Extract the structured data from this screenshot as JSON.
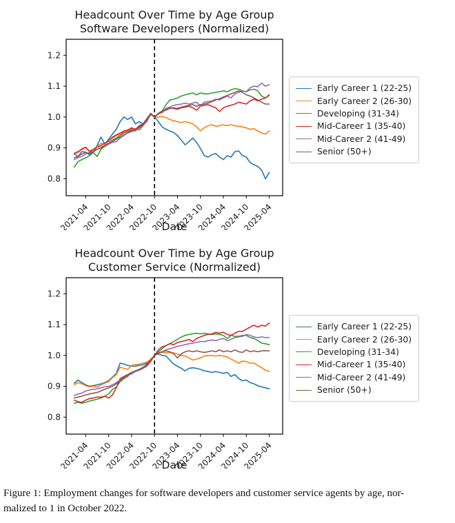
{
  "figure": {
    "caption_line1": "Figure 1: Employment changes for software developers and customer service agents by age, nor-",
    "caption_line2": "malized to 1 in October 2022."
  },
  "chart_data": [
    {
      "type": "line",
      "title_line1": "Headcount Over Time by Age Group",
      "title_line2": "Software Developers (Normalized)",
      "xlabel": "Date",
      "ylabel": "",
      "grid": false,
      "legend_position": "center-left-outside",
      "ylim": [
        0.745,
        1.252
      ],
      "xlim_index": [
        -2.1,
        54.5
      ],
      "ytick_values": [
        0.8,
        0.9,
        1.0,
        1.1,
        1.2
      ],
      "ytick_labels": [
        "0.8",
        "0.9",
        "1.0",
        "1.1",
        "1.2"
      ],
      "xtick_indices": [
        3,
        9,
        15,
        21,
        27,
        33,
        39,
        45,
        51
      ],
      "xtick_labels": [
        "2021-04",
        "2021-10",
        "2022-04",
        "2022-10",
        "2023-04",
        "2023-10",
        "2024-04",
        "2024-10",
        "2025-04"
      ],
      "dashed_at": "2022-10",
      "dashed_index": 21,
      "x": [
        "2021-01",
        "2021-02",
        "2021-03",
        "2021-04",
        "2021-05",
        "2021-06",
        "2021-07",
        "2021-08",
        "2021-09",
        "2021-10",
        "2021-11",
        "2021-12",
        "2022-01",
        "2022-02",
        "2022-03",
        "2022-04",
        "2022-05",
        "2022-06",
        "2022-07",
        "2022-08",
        "2022-09",
        "2022-10",
        "2022-11",
        "2022-12",
        "2023-01",
        "2023-02",
        "2023-03",
        "2023-04",
        "2023-05",
        "2023-06",
        "2023-07",
        "2023-08",
        "2023-09",
        "2023-10",
        "2023-11",
        "2023-12",
        "2024-01",
        "2024-02",
        "2024-03",
        "2024-04",
        "2024-05",
        "2024-06",
        "2024-07",
        "2024-08",
        "2024-09",
        "2024-10",
        "2024-11",
        "2024-12",
        "2025-01",
        "2025-02",
        "2025-03",
        "2025-04"
      ],
      "series": [
        {
          "name": "Early Career 1 (22-25)",
          "color": "#1f77b4",
          "values": [
            0.88,
            0.872,
            0.888,
            0.886,
            0.878,
            0.885,
            0.908,
            0.935,
            0.912,
            0.928,
            0.945,
            0.96,
            0.985,
            1.0,
            0.992,
            1.0,
            0.978,
            0.985,
            0.978,
            0.995,
            1.012,
            1.0,
            0.985,
            0.968,
            0.96,
            0.955,
            0.95,
            0.94,
            0.925,
            0.91,
            0.92,
            0.932,
            0.918,
            0.898,
            0.875,
            0.87,
            0.878,
            0.882,
            0.87,
            0.862,
            0.875,
            0.87,
            0.888,
            0.89,
            0.875,
            0.87,
            0.852,
            0.845,
            0.84,
            0.828,
            0.8,
            0.82
          ]
        },
        {
          "name": "Early Career 2 (26-30)",
          "color": "#ff7f0e",
          "values": [
            0.882,
            0.885,
            0.898,
            0.902,
            0.89,
            0.895,
            0.905,
            0.915,
            0.912,
            0.922,
            0.932,
            0.94,
            0.945,
            0.952,
            0.955,
            0.962,
            0.955,
            0.968,
            0.975,
            0.985,
            1.01,
            1.0,
            1.0,
            1.002,
            0.998,
            0.992,
            0.988,
            0.985,
            0.982,
            0.985,
            0.982,
            0.978,
            0.968,
            0.955,
            0.965,
            0.972,
            0.975,
            0.97,
            0.972,
            0.975,
            0.972,
            0.975,
            0.972,
            0.97,
            0.968,
            0.965,
            0.96,
            0.962,
            0.955,
            0.948,
            0.945,
            0.955
          ]
        },
        {
          "name": "Developing (31-34)",
          "color": "#2ca02c",
          "values": [
            0.838,
            0.855,
            0.862,
            0.868,
            0.875,
            0.885,
            0.872,
            0.895,
            0.905,
            0.912,
            0.92,
            0.928,
            0.935,
            0.942,
            0.948,
            0.955,
            0.962,
            0.958,
            0.972,
            0.99,
            1.008,
            1.0,
            1.012,
            1.02,
            1.04,
            1.055,
            1.058,
            1.062,
            1.068,
            1.072,
            1.075,
            1.078,
            1.072,
            1.078,
            1.075,
            1.075,
            1.078,
            1.08,
            1.082,
            1.085,
            1.082,
            1.088,
            1.092,
            1.09,
            1.085,
            1.082,
            1.088,
            1.09,
            1.085,
            1.068,
            1.062,
            1.07
          ]
        },
        {
          "name": "Mid-Career 1 (35-40)",
          "color": "#d62728",
          "values": [
            0.882,
            0.888,
            0.895,
            0.902,
            0.888,
            0.895,
            0.902,
            0.908,
            0.915,
            0.922,
            0.935,
            0.942,
            0.948,
            0.955,
            0.958,
            0.965,
            0.96,
            0.972,
            0.978,
            0.992,
            1.012,
            1.0,
            1.01,
            1.015,
            1.025,
            1.03,
            1.028,
            1.025,
            1.03,
            1.032,
            1.035,
            1.03,
            1.022,
            1.035,
            1.038,
            1.04,
            1.035,
            1.03,
            1.018,
            1.03,
            1.035,
            1.038,
            1.042,
            1.048,
            1.045,
            1.042,
            1.052,
            1.058,
            1.052,
            1.058,
            1.062,
            1.072
          ]
        },
        {
          "name": "Mid-Career 2 (41-49)",
          "color": "#9467bd",
          "values": [
            0.862,
            0.868,
            0.872,
            0.88,
            0.885,
            0.89,
            0.895,
            0.902,
            0.908,
            0.912,
            0.918,
            0.92,
            0.932,
            0.94,
            0.948,
            0.952,
            0.958,
            0.965,
            0.972,
            0.988,
            1.008,
            1.0,
            1.012,
            1.018,
            1.028,
            1.032,
            1.038,
            1.04,
            1.042,
            1.045,
            1.042,
            1.045,
            1.048,
            1.035,
            1.048,
            1.05,
            1.052,
            1.058,
            1.055,
            1.062,
            1.068,
            1.062,
            1.075,
            1.08,
            1.085,
            1.082,
            1.095,
            1.1,
            1.098,
            1.11,
            1.1,
            1.105
          ]
        },
        {
          "name": "Senior (50+)",
          "color": "#8c564b",
          "values": [
            0.868,
            0.872,
            0.88,
            0.885,
            0.882,
            0.888,
            0.895,
            0.9,
            0.908,
            0.915,
            0.925,
            0.932,
            0.94,
            0.948,
            0.952,
            0.958,
            0.955,
            0.968,
            0.975,
            0.99,
            1.01,
            1.0,
            1.012,
            1.018,
            1.022,
            1.028,
            1.03,
            1.028,
            1.032,
            1.035,
            1.038,
            1.04,
            1.035,
            1.04,
            1.042,
            1.045,
            1.05,
            1.055,
            1.06,
            1.065,
            1.07,
            1.075,
            1.08,
            1.085,
            1.08,
            1.072,
            1.068,
            1.062,
            1.055,
            1.048,
            1.042,
            1.042
          ]
        }
      ]
    },
    {
      "type": "line",
      "title_line1": "Headcount Over Time by Age Group",
      "title_line2": "Customer Service (Normalized)",
      "xlabel": "Date",
      "ylabel": "",
      "grid": false,
      "legend_position": "center-left-outside",
      "ylim": [
        0.745,
        1.252
      ],
      "xlim_index": [
        -2.1,
        54.5
      ],
      "ytick_values": [
        0.8,
        0.9,
        1.0,
        1.1,
        1.2
      ],
      "ytick_labels": [
        "0.8",
        "0.9",
        "1.0",
        "1.1",
        "1.2"
      ],
      "xtick_indices": [
        3,
        9,
        15,
        21,
        27,
        33,
        39,
        45,
        51
      ],
      "xtick_labels": [
        "2021-04",
        "2021-10",
        "2022-04",
        "2022-10",
        "2023-04",
        "2023-10",
        "2024-04",
        "2024-10",
        "2025-04"
      ],
      "dashed_at": "2022-10",
      "dashed_index": 21,
      "x": [
        "2021-01",
        "2021-02",
        "2021-03",
        "2021-04",
        "2021-05",
        "2021-06",
        "2021-07",
        "2021-08",
        "2021-09",
        "2021-10",
        "2021-11",
        "2021-12",
        "2022-01",
        "2022-02",
        "2022-03",
        "2022-04",
        "2022-05",
        "2022-06",
        "2022-07",
        "2022-08",
        "2022-09",
        "2022-10",
        "2022-11",
        "2022-12",
        "2023-01",
        "2023-02",
        "2023-03",
        "2023-04",
        "2023-05",
        "2023-06",
        "2023-07",
        "2023-08",
        "2023-09",
        "2023-10",
        "2023-11",
        "2023-12",
        "2024-01",
        "2024-02",
        "2024-03",
        "2024-04",
        "2024-05",
        "2024-06",
        "2024-07",
        "2024-08",
        "2024-09",
        "2024-10",
        "2024-11",
        "2024-12",
        "2025-01",
        "2025-02",
        "2025-03",
        "2025-04"
      ],
      "series": [
        {
          "name": "Early Career 1 (22-25)",
          "color": "#1f77b4",
          "values": [
            0.91,
            0.92,
            0.912,
            0.905,
            0.9,
            0.902,
            0.905,
            0.908,
            0.912,
            0.918,
            0.93,
            0.942,
            0.975,
            0.972,
            0.968,
            0.965,
            0.965,
            0.968,
            0.97,
            0.975,
            0.985,
            1.0,
            1.005,
            1.0,
            0.998,
            0.985,
            0.972,
            0.965,
            0.958,
            0.95,
            0.958,
            0.96,
            0.958,
            0.955,
            0.95,
            0.948,
            0.945,
            0.948,
            0.945,
            0.942,
            0.945,
            0.932,
            0.938,
            0.925,
            0.918,
            0.92,
            0.912,
            0.908,
            0.902,
            0.898,
            0.895,
            0.892
          ]
        },
        {
          "name": "Early Career 2 (26-30)",
          "color": "#ff7f0e",
          "values": [
            0.905,
            0.912,
            0.908,
            0.902,
            0.898,
            0.9,
            0.898,
            0.905,
            0.91,
            0.915,
            0.928,
            0.938,
            0.962,
            0.958,
            0.955,
            0.968,
            0.97,
            0.972,
            0.975,
            0.978,
            0.988,
            1.0,
            1.008,
            1.01,
            1.008,
            1.01,
            1.008,
            1.005,
            1.0,
            0.998,
            0.992,
            0.985,
            0.988,
            0.992,
            0.998,
            1.0,
            1.0,
            0.998,
            1.0,
            0.998,
            0.995,
            0.988,
            0.982,
            0.975,
            0.982,
            0.98,
            0.975,
            0.975,
            0.968,
            0.96,
            0.952,
            0.948
          ]
        },
        {
          "name": "Developing (31-34)",
          "color": "#2ca02c",
          "values": [
            0.845,
            0.848,
            0.845,
            0.848,
            0.852,
            0.855,
            0.858,
            0.862,
            0.868,
            0.875,
            0.89,
            0.898,
            0.915,
            0.925,
            0.932,
            0.945,
            0.95,
            0.955,
            0.962,
            0.97,
            0.982,
            1.0,
            1.012,
            1.022,
            1.032,
            1.038,
            1.045,
            1.052,
            1.06,
            1.065,
            1.068,
            1.07,
            1.072,
            1.07,
            1.072,
            1.07,
            1.068,
            1.07,
            1.068,
            1.065,
            1.055,
            1.065,
            1.062,
            1.062,
            1.065,
            1.065,
            1.058,
            1.055,
            1.048,
            1.04,
            1.038,
            1.035
          ]
        },
        {
          "name": "Mid-Career 1 (35-40)",
          "color": "#d62728",
          "values": [
            0.855,
            0.85,
            0.848,
            0.855,
            0.86,
            0.862,
            0.865,
            0.865,
            0.868,
            0.862,
            0.872,
            0.895,
            0.925,
            0.932,
            0.938,
            0.945,
            0.948,
            0.952,
            0.958,
            0.972,
            0.985,
            1.0,
            1.018,
            1.028,
            1.032,
            1.038,
            1.035,
            1.042,
            1.045,
            1.048,
            1.052,
            1.045,
            1.055,
            1.06,
            1.065,
            1.068,
            1.07,
            1.075,
            1.072,
            1.075,
            1.068,
            1.065,
            1.072,
            1.078,
            1.078,
            1.085,
            1.092,
            1.098,
            1.092,
            1.098,
            1.095,
            1.105
          ]
        },
        {
          "name": "Mid-Career 2 (41-49)",
          "color": "#9467bd",
          "values": [
            0.87,
            0.875,
            0.878,
            0.885,
            0.888,
            0.89,
            0.892,
            0.895,
            0.898,
            0.9,
            0.905,
            0.912,
            0.92,
            0.928,
            0.935,
            0.94,
            0.948,
            0.952,
            0.958,
            0.965,
            0.98,
            1.0,
            1.008,
            1.012,
            1.018,
            1.022,
            1.025,
            1.03,
            1.032,
            1.035,
            1.038,
            1.04,
            1.042,
            1.045,
            1.045,
            1.048,
            1.05,
            1.048,
            1.052,
            1.055,
            1.048,
            1.052,
            1.058,
            1.06,
            1.062,
            1.068,
            1.065,
            1.06,
            1.058,
            1.06,
            1.058,
            1.058
          ]
        },
        {
          "name": "Senior (50+)",
          "color": "#8c564b",
          "values": [
            0.862,
            0.865,
            0.868,
            0.872,
            0.875,
            0.878,
            0.88,
            0.885,
            0.89,
            0.895,
            0.9,
            0.908,
            0.918,
            0.928,
            0.938,
            0.945,
            0.95,
            0.955,
            0.96,
            0.968,
            0.982,
            1.0,
            1.008,
            1.012,
            1.015,
            1.012,
            1.005,
            0.992,
            1.005,
            1.012,
            1.015,
            1.012,
            1.015,
            1.012,
            1.01,
            1.012,
            1.015,
            1.012,
            1.018,
            1.012,
            1.015,
            1.012,
            1.018,
            1.012,
            1.01,
            1.018,
            1.012,
            1.015,
            1.012,
            1.015,
            1.015,
            1.015
          ]
        }
      ]
    }
  ]
}
